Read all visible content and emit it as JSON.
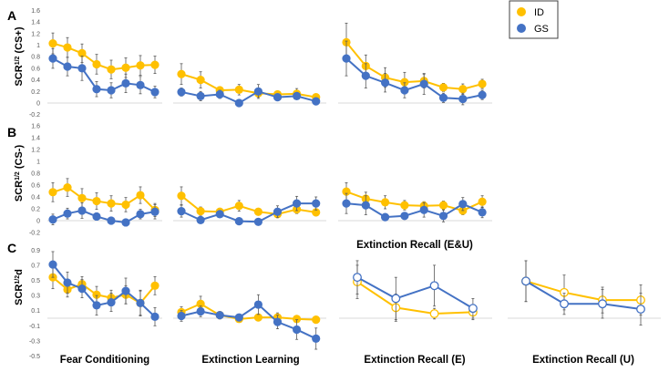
{
  "chart_data": {
    "type": "line",
    "legend": {
      "placement": "top-right",
      "entries": [
        {
          "name": "ID",
          "color": "#FFC000"
        },
        {
          "name": "GS",
          "color": "#4472C4"
        }
      ]
    },
    "columns": {
      "fc": "Fear Conditioning",
      "el": "Extinction Learning",
      "er_eu": "Extinction Recall (E&U)",
      "er_e": "Extinction Recall (E)",
      "er_u": "Extinction Recall (U)"
    },
    "rows": [
      {
        "letter": "A",
        "ylabel_main": "SCR",
        "ylabel_sup": "1/2",
        "ylabel_rest": " (CS+)",
        "ticks": [
          "1.6",
          "1.4",
          "1.2",
          "1",
          "0.8",
          "0.6",
          "0.4",
          "0.2",
          "0",
          "-0.2"
        ],
        "tick_values": [
          1.6,
          1.4,
          1.2,
          1,
          0.8,
          0.6,
          0.4,
          0.2,
          0,
          -0.2
        ],
        "panels": [
          {
            "column": "fc",
            "series": [
              {
                "name": "ID",
                "values": [
                  1.03,
                  0.96,
                  0.86,
                  0.67,
                  0.58,
                  0.61,
                  0.65,
                  0.66
                ],
                "err": [
                  0.18,
                  0.17,
                  0.16,
                  0.17,
                  0.16,
                  0.17,
                  0.17,
                  0.15
                ]
              },
              {
                "name": "GS",
                "values": [
                  0.77,
                  0.63,
                  0.6,
                  0.24,
                  0.22,
                  0.34,
                  0.31,
                  0.19
                ],
                "err": [
                  0.17,
                  0.16,
                  0.21,
                  0.13,
                  0.13,
                  0.16,
                  0.15,
                  0.1
                ]
              }
            ]
          },
          {
            "column": "el",
            "series": [
              {
                "name": "ID",
                "values": [
                  0.5,
                  0.4,
                  0.22,
                  0.23,
                  0.17,
                  0.15,
                  0.16,
                  0.1
                ],
                "err": [
                  0.18,
                  0.14,
                  0.06,
                  0.09,
                  0.07,
                  0.05,
                  0.09,
                  0.04
                ]
              },
              {
                "name": "GS",
                "values": [
                  0.19,
                  0.12,
                  0.15,
                  0.0,
                  0.2,
                  0.1,
                  0.12,
                  0.03
                ],
                "err": [
                  0.07,
                  0.08,
                  0.07,
                  0.03,
                  0.12,
                  0.05,
                  0.05,
                  0.03
                ]
              }
            ]
          },
          {
            "column": "er_eu",
            "series": [
              {
                "name": "ID",
                "values": [
                  1.05,
                  0.64,
                  0.44,
                  0.36,
                  0.38,
                  0.27,
                  0.24,
                  0.33
                ],
                "err": [
                  0.33,
                  0.19,
                  0.17,
                  0.17,
                  0.12,
                  0.07,
                  0.09,
                  0.08
                ]
              },
              {
                "name": "GS",
                "values": [
                  0.77,
                  0.47,
                  0.35,
                  0.22,
                  0.33,
                  0.09,
                  0.07,
                  0.14
                ],
                "err": [
                  0.3,
                  0.21,
                  0.16,
                  0.13,
                  0.18,
                  0.08,
                  0.1,
                  0.08
                ]
              }
            ]
          }
        ]
      },
      {
        "letter": "B",
        "ylabel_main": "SCR",
        "ylabel_sup": "1/2",
        "ylabel_rest": " (CS-)",
        "ticks": [
          "1.6",
          "1.4",
          "1.2",
          "1",
          "0.8",
          "0.6",
          "0.4",
          "0.2",
          "0",
          "-0.2"
        ],
        "tick_values": [
          1.6,
          1.4,
          1.2,
          1,
          0.8,
          0.6,
          0.4,
          0.2,
          0,
          -0.2
        ],
        "panels": [
          {
            "column": "fc",
            "series": [
              {
                "name": "ID",
                "values": [
                  0.48,
                  0.56,
                  0.38,
                  0.33,
                  0.29,
                  0.27,
                  0.43,
                  0.18
                ],
                "err": [
                  0.16,
                  0.15,
                  0.16,
                  0.14,
                  0.13,
                  0.12,
                  0.14,
                  0.11
                ]
              },
              {
                "name": "GS",
                "values": [
                  0.02,
                  0.12,
                  0.17,
                  0.07,
                  0.0,
                  -0.03,
                  0.11,
                  0.15
                ],
                "err": [
                  0.09,
                  0.09,
                  0.13,
                  0.06,
                  0.05,
                  0.05,
                  0.08,
                  0.12
                ]
              }
            ]
          },
          {
            "column": "el",
            "series": [
              {
                "name": "ID",
                "values": [
                  0.42,
                  0.16,
                  0.15,
                  0.25,
                  0.15,
                  0.11,
                  0.19,
                  0.14
                ],
                "err": [
                  0.15,
                  0.07,
                  0.06,
                  0.09,
                  0.04,
                  0.04,
                  0.07,
                  0.06
                ]
              },
              {
                "name": "GS",
                "values": [
                  0.16,
                  0.01,
                  0.11,
                  -0.01,
                  -0.02,
                  0.15,
                  0.29,
                  0.29
                ],
                "err": [
                  0.1,
                  0.04,
                  0.05,
                  0.02,
                  0.02,
                  0.1,
                  0.12,
                  0.11
                ]
              }
            ]
          },
          {
            "column": "er_eu",
            "series": [
              {
                "name": "ID",
                "values": [
                  0.49,
                  0.37,
                  0.31,
                  0.26,
                  0.25,
                  0.26,
                  0.17,
                  0.32
                ],
                "err": [
                  0.15,
                  0.11,
                  0.11,
                  0.08,
                  0.07,
                  0.07,
                  0.07,
                  0.1
                ]
              },
              {
                "name": "GS",
                "values": [
                  0.29,
                  0.26,
                  0.06,
                  0.08,
                  0.18,
                  0.08,
                  0.28,
                  0.14
                ],
                "err": [
                  0.17,
                  0.16,
                  0.05,
                  0.06,
                  0.12,
                  0.1,
                  0.11,
                  0.09
                ]
              }
            ]
          }
        ]
      },
      {
        "letter": "C",
        "ylabel_main": "SCR",
        "ylabel_sup": "1/2",
        "ylabel_rest": "d",
        "ticks": [
          "0.9",
          "0.7",
          "0.5",
          "0.3",
          "0.1",
          "-0.1",
          "-0.3",
          "-0.5"
        ],
        "tick_values": [
          0.9,
          0.7,
          0.5,
          0.3,
          0.1,
          -0.1,
          -0.3,
          -0.5
        ],
        "panels": [
          {
            "column": "fc",
            "series": [
              {
                "name": "ID",
                "values": [
                  0.54,
                  0.38,
                  0.45,
                  0.31,
                  0.27,
                  0.31,
                  0.2,
                  0.43
                ],
                "err": [
                  0.15,
                  0.1,
                  0.1,
                  0.11,
                  0.1,
                  0.12,
                  0.17,
                  0.12
                ]
              },
              {
                "name": "GS",
                "values": [
                  0.71,
                  0.47,
                  0.39,
                  0.17,
                  0.21,
                  0.36,
                  0.2,
                  0.02
                ],
                "err": [
                  0.17,
                  0.14,
                  0.12,
                  0.13,
                  0.12,
                  0.17,
                  0.16,
                  0.12
                ]
              }
            ]
          },
          {
            "column": "el",
            "series": [
              {
                "name": "ID",
                "values": [
                  0.08,
                  0.19,
                  0.04,
                  -0.01,
                  0.01,
                  0.01,
                  -0.01,
                  -0.02
                ],
                "err": [
                  0.07,
                  0.1,
                  0.05,
                  0.03,
                  0.03,
                  0.06,
                  0.04,
                  0.03
                ]
              },
              {
                "name": "GS",
                "values": [
                  0.03,
                  0.09,
                  0.04,
                  0.01,
                  0.18,
                  -0.05,
                  -0.15,
                  -0.27
                ],
                "err": [
                  0.07,
                  0.07,
                  0.04,
                  0.04,
                  0.13,
                  0.09,
                  0.13,
                  0.14
                ]
              }
            ]
          },
          {
            "column": "er_e",
            "open": true,
            "series": [
              {
                "name": "ID",
                "values": [
                  0.48,
                  0.14,
                  0.06,
                  0.08
                ],
                "err": [
                  0.22,
                  0.18,
                  0.07,
                  0.1
                ]
              },
              {
                "name": "GS",
                "values": [
                  0.54,
                  0.26,
                  0.43,
                  0.13
                ],
                "err": [
                  0.22,
                  0.28,
                  0.27,
                  0.13
                ]
              }
            ]
          },
          {
            "column": "er_u",
            "open": true,
            "series": [
              {
                "name": "ID",
                "values": [
                  0.49,
                  0.34,
                  0.24,
                  0.24
                ],
                "err": [
                  0.27,
                  0.23,
                  0.17,
                  0.2
                ]
              },
              {
                "name": "GS",
                "values": [
                  0.49,
                  0.19,
                  0.19,
                  0.12
                ],
                "err": [
                  0.27,
                  0.14,
                  0.19,
                  0.21
                ]
              }
            ]
          }
        ]
      }
    ]
  }
}
